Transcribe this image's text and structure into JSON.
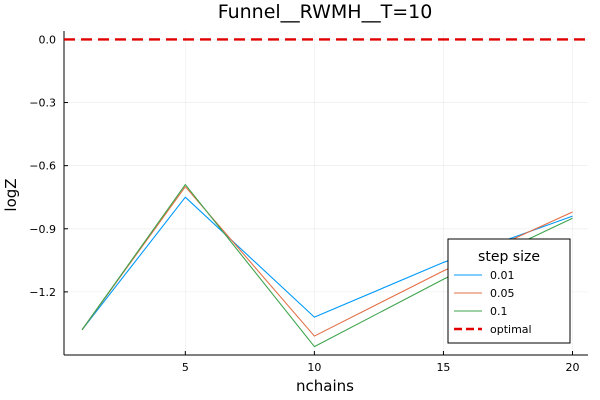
{
  "chart_data": {
    "type": "line",
    "title": "Funnel__RWMH__T=10",
    "xlabel": "nchains",
    "ylabel": "logZ",
    "x": [
      1,
      5,
      10,
      15,
      20
    ],
    "xlim": [
      0.3,
      20.6
    ],
    "ylim": [
      -1.5,
      0.04
    ],
    "xticks": [
      5,
      10,
      15,
      20
    ],
    "yticks": [
      0.0,
      -0.3,
      -0.6,
      -0.9,
      -1.2
    ],
    "ytick_labels": [
      "0.0",
      "−0.3",
      "−0.6",
      "−0.9",
      "−1.2"
    ],
    "grid": true,
    "legend_title": "step size",
    "legend_position": "bottom-right",
    "series": [
      {
        "name": "0.01",
        "color": "#009AFA",
        "values": [
          -1.38,
          -0.75,
          -1.32,
          -1.06,
          -0.84
        ]
      },
      {
        "name": "0.05",
        "color": "#E26F46",
        "values": [
          -1.38,
          -0.7,
          -1.41,
          -1.1,
          -0.82
        ]
      },
      {
        "name": "0.1",
        "color": "#3EA44E",
        "values": [
          -1.38,
          -0.69,
          -1.46,
          -1.14,
          -0.85
        ]
      }
    ],
    "hline": {
      "name": "optimal",
      "value": 0.0,
      "color": "#E00000",
      "style": "dashed"
    }
  }
}
